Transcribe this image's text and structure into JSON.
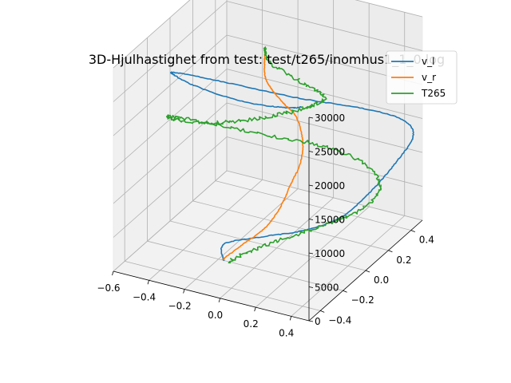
{
  "chart_data": {
    "type": "line",
    "projection": "3d",
    "title": "3D-Hjulhastighet from test: test/t265/inomhus1_1_0.log",
    "xlabel": "",
    "ylabel": "",
    "zlabel": "",
    "xlim": [
      -0.6,
      0.5
    ],
    "ylim": [
      -0.5,
      0.5
    ],
    "zlim": [
      0,
      30000
    ],
    "x_ticks": [
      "−0.6",
      "−0.4",
      "−0.2",
      "0.0",
      "0.2",
      "0.4"
    ],
    "y_ticks": [
      "−0.4",
      "−0.2",
      "0.0",
      "0.2",
      "0.4"
    ],
    "z_ticks": [
      "0",
      "5000",
      "10000",
      "15000",
      "20000",
      "25000",
      "30000"
    ],
    "grid": true,
    "legend_position": "top-right",
    "colors": {
      "v_l": "#1f77b4",
      "v_r": "#ff7f0e",
      "T265": "#2ca02c"
    },
    "series": [
      {
        "name": "v_l",
        "x": [
          -0.17,
          -0.2,
          -0.02,
          0.18,
          0.33,
          0.4,
          0.45,
          0.48,
          0.45,
          0.32,
          0.05,
          -0.3,
          -0.5,
          -0.45,
          -0.25,
          0.05,
          0.25,
          0.3
        ],
        "y": [
          -0.2,
          -0.15,
          -0.1,
          -0.05,
          0.05,
          0.2,
          0.35,
          0.45,
          0.4,
          0.25,
          0.1,
          0.0,
          -0.1,
          -0.2,
          -0.3,
          -0.35,
          -0.3,
          -0.25
        ],
        "z": [
          0,
          1500,
          3000,
          4500,
          6000,
          8000,
          10500,
          13000,
          16000,
          19000,
          21000,
          22500,
          24000,
          25500,
          26500,
          27000,
          26800,
          26500
        ]
      },
      {
        "name": "v_r",
        "x": [
          -0.18,
          -0.1,
          0.0,
          0.05,
          0.08,
          0.12,
          0.12,
          0.08,
          0.02,
          -0.02,
          -0.05,
          -0.05,
          -0.04
        ],
        "y": [
          -0.2,
          -0.15,
          -0.1,
          -0.05,
          0.0,
          0.02,
          0.04,
          0.05,
          0.03,
          0.0,
          -0.02,
          -0.03,
          -0.04
        ],
        "z": [
          0,
          2000,
          4500,
          7000,
          10000,
          13000,
          16000,
          19000,
          21000,
          23000,
          25000,
          27500,
          30000
        ]
      },
      {
        "name": "T265",
        "x": [
          -0.14,
          -0.05,
          0.1,
          0.25,
          0.38,
          0.42,
          0.3,
          0.1,
          -0.1,
          -0.35,
          -0.55,
          -0.5,
          -0.3,
          -0.1,
          0.1,
          0.25,
          0.3,
          0.15,
          -0.02,
          -0.04
        ],
        "y": [
          -0.2,
          -0.15,
          -0.05,
          0.05,
          0.15,
          0.25,
          0.3,
          0.25,
          0.15,
          0.05,
          -0.05,
          -0.15,
          -0.2,
          -0.2,
          -0.15,
          -0.1,
          -0.05,
          -0.05,
          -0.04,
          -0.04
        ],
        "z": [
          0,
          1500,
          3000,
          4500,
          6000,
          8000,
          10000,
          12000,
          13500,
          15000,
          16500,
          18000,
          19500,
          21000,
          22500,
          24000,
          25000,
          26500,
          28000,
          30000
        ]
      }
    ]
  }
}
